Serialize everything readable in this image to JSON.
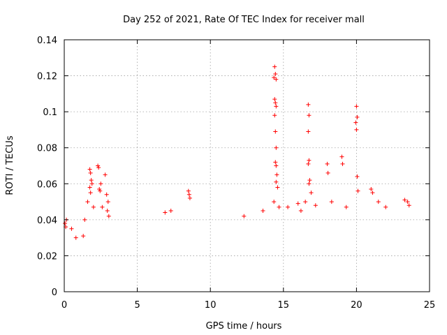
{
  "chart_data": {
    "type": "scatter",
    "title": "Day 252 of 2021, Rate Of TEC Index for receiver mall",
    "xlabel": "GPS time / hours",
    "ylabel": "ROTI / TECUs",
    "xlim": [
      0,
      25
    ],
    "ylim": [
      0,
      0.14
    ],
    "x_ticks": [
      0,
      5,
      10,
      15,
      20,
      25
    ],
    "x_tick_labels": [
      "0",
      "5",
      "10",
      "15",
      "20",
      "25"
    ],
    "y_ticks": [
      0,
      0.02,
      0.04,
      0.06,
      0.08,
      0.1,
      0.12,
      0.14
    ],
    "y_tick_labels": [
      "0",
      "0.02",
      "0.04",
      "0.06",
      "0.08",
      "0.1",
      "0.12",
      "0.14"
    ],
    "grid": true,
    "marker": "+",
    "marker_color": "#ff0000",
    "series": [
      {
        "points": [
          [
            0.05,
            0.038
          ],
          [
            0.1,
            0.036
          ],
          [
            0.15,
            0.04
          ],
          [
            0.5,
            0.035
          ],
          [
            0.8,
            0.03
          ],
          [
            1.3,
            0.031
          ],
          [
            1.4,
            0.04
          ],
          [
            1.6,
            0.05
          ],
          [
            1.75,
            0.068
          ],
          [
            1.8,
            0.066
          ],
          [
            1.85,
            0.062
          ],
          [
            1.75,
            0.058
          ],
          [
            1.9,
            0.06
          ],
          [
            1.8,
            0.055
          ],
          [
            2.0,
            0.047
          ],
          [
            2.3,
            0.07
          ],
          [
            2.35,
            0.069
          ],
          [
            2.4,
            0.057
          ],
          [
            2.45,
            0.056
          ],
          [
            2.5,
            0.06
          ],
          [
            2.8,
            0.065
          ],
          [
            2.6,
            0.047
          ],
          [
            2.9,
            0.054
          ],
          [
            3.0,
            0.05
          ],
          [
            2.95,
            0.045
          ],
          [
            3.05,
            0.042
          ],
          [
            8.5,
            0.056
          ],
          [
            8.55,
            0.054
          ],
          [
            8.6,
            0.052
          ],
          [
            7.3,
            0.045
          ],
          [
            6.9,
            0.044
          ],
          [
            12.3,
            0.042
          ],
          [
            13.6,
            0.045
          ],
          [
            14.4,
            0.125
          ],
          [
            14.45,
            0.121
          ],
          [
            14.35,
            0.119
          ],
          [
            14.5,
            0.118
          ],
          [
            14.4,
            0.107
          ],
          [
            14.45,
            0.105
          ],
          [
            14.5,
            0.103
          ],
          [
            14.4,
            0.098
          ],
          [
            14.45,
            0.089
          ],
          [
            14.5,
            0.08
          ],
          [
            14.45,
            0.072
          ],
          [
            14.5,
            0.07
          ],
          [
            14.55,
            0.065
          ],
          [
            14.5,
            0.061
          ],
          [
            14.6,
            0.058
          ],
          [
            14.35,
            0.05
          ],
          [
            14.7,
            0.047
          ],
          [
            15.3,
            0.047
          ],
          [
            16.0,
            0.049
          ],
          [
            16.2,
            0.045
          ],
          [
            16.5,
            0.05
          ],
          [
            16.7,
            0.104
          ],
          [
            16.75,
            0.098
          ],
          [
            16.7,
            0.089
          ],
          [
            16.75,
            0.073
          ],
          [
            16.7,
            0.071
          ],
          [
            16.8,
            0.062
          ],
          [
            16.75,
            0.06
          ],
          [
            16.9,
            0.055
          ],
          [
            17.2,
            0.048
          ],
          [
            18.0,
            0.071
          ],
          [
            18.05,
            0.066
          ],
          [
            18.3,
            0.05
          ],
          [
            19.0,
            0.075
          ],
          [
            19.05,
            0.071
          ],
          [
            19.3,
            0.047
          ],
          [
            20.0,
            0.103
          ],
          [
            20.05,
            0.097
          ],
          [
            19.95,
            0.094
          ],
          [
            20.0,
            0.09
          ],
          [
            20.05,
            0.064
          ],
          [
            20.1,
            0.056
          ],
          [
            21.0,
            0.057
          ],
          [
            21.1,
            0.055
          ],
          [
            21.5,
            0.05
          ],
          [
            22.0,
            0.047
          ],
          [
            23.3,
            0.051
          ],
          [
            23.5,
            0.05
          ],
          [
            23.6,
            0.048
          ]
        ]
      }
    ]
  }
}
